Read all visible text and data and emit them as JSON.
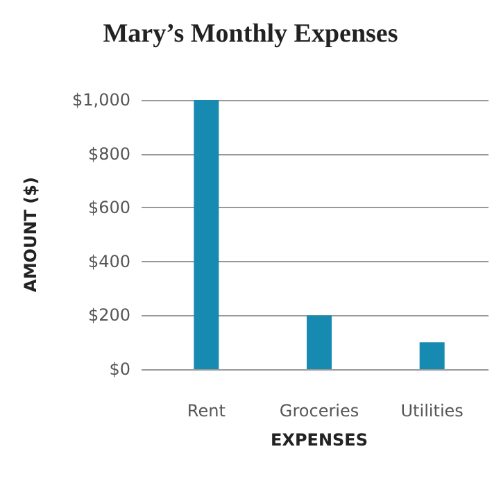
{
  "chart_data": {
    "type": "bar",
    "title": "Mary’s Monthly Expenses",
    "xlabel": "EXPENSES",
    "ylabel": "AMOUNT ($)",
    "categories": [
      "Rent",
      "Groceries",
      "Utilities"
    ],
    "values": [
      1000,
      200,
      100
    ],
    "color": "#168ab0",
    "ylim": [
      0,
      1000
    ],
    "yticks": [
      {
        "value": 0,
        "label": "$0"
      },
      {
        "value": 200,
        "label": "$200"
      },
      {
        "value": 400,
        "label": "$400"
      },
      {
        "value": 600,
        "label": "$600"
      },
      {
        "value": 800,
        "label": "$800"
      },
      {
        "value": 1000,
        "label": "$1,000"
      }
    ],
    "grid": "y"
  }
}
